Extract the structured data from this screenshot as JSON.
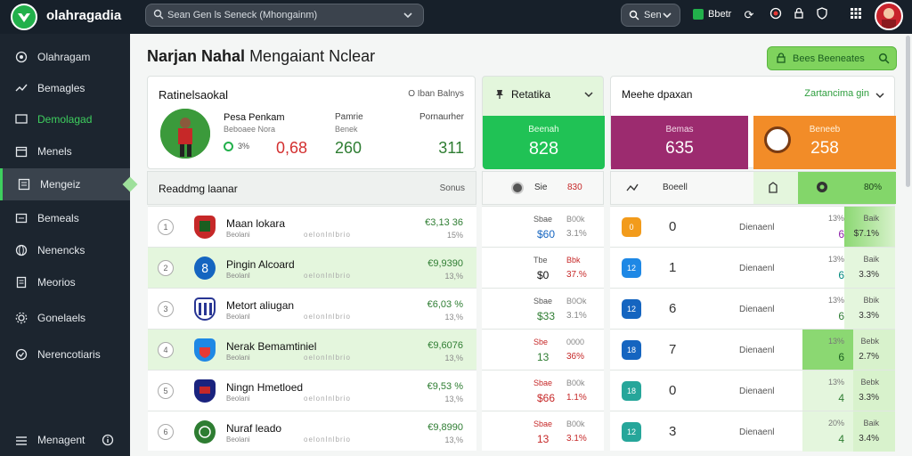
{
  "app": {
    "title": "olahragadia"
  },
  "topbar": {
    "search_placeholder": "Sean Gen ls Seneck (Mhongainm)",
    "btn_search_label": "Sen",
    "btn_live_label": "Bbetr"
  },
  "sidebar": {
    "items": [
      {
        "label": "Olahragam",
        "icon": "target-icon"
      },
      {
        "label": "Bemagles",
        "icon": "trending-icon"
      },
      {
        "label": "Demolagad",
        "icon": "screen-icon"
      },
      {
        "label": "Menels",
        "icon": "calendar-icon"
      },
      {
        "label": "Mengeiz",
        "icon": "list-icon"
      },
      {
        "label": "Bemeals",
        "icon": "window-icon"
      },
      {
        "label": "Nenencks",
        "icon": "globe-icon"
      },
      {
        "label": "Meorios",
        "icon": "document-icon"
      },
      {
        "label": "Gonelaels",
        "icon": "settings-icon"
      },
      {
        "label": "Nerencotiaris",
        "icon": "shield-icon"
      }
    ],
    "footer_label": "Menagent"
  },
  "page": {
    "title_bold": "Narjan Nahal",
    "title_rest": "Mengaiant Nclear",
    "cta_label": "Bees Beeneates"
  },
  "profile": {
    "title": "Ratinelsaokal",
    "link": "O Iban Balnys",
    "player_name": "Pesa Penkam",
    "player_sub": "Beboaee Nora",
    "player_small": "3%",
    "col2_label": "Pamrie",
    "col2_sub": "Benek",
    "col3_label": "Pornaurher",
    "val1": "0,68",
    "val2": "260",
    "val3": "311"
  },
  "ranking": {
    "title": "Readdmg laanar",
    "link": "Sonus",
    "rows": [
      {
        "rank": "1",
        "team": "Maan lokara",
        "sub": "Beolani",
        "dots": "oelonlnlbrio",
        "val": "€3,13 36",
        "pct": "15%"
      },
      {
        "rank": "2",
        "team": "Pingin Alcoard",
        "sub": "Beolanl",
        "dots": "oelonlnlbrio",
        "val": "€9,9390",
        "pct": "13,%"
      },
      {
        "rank": "3",
        "team": "Metort aliugan",
        "sub": "Beolanl",
        "dots": "oelonlnlbrio",
        "val": "€6,03 %",
        "pct": "13,%"
      },
      {
        "rank": "4",
        "team": "Nerak Bemamtiniel",
        "sub": "Beolani",
        "dots": "oelonlnlbrio",
        "val": "€9,6076",
        "pct": "13,%"
      },
      {
        "rank": "5",
        "team": "Ningn Hmetloed",
        "sub": "Beolani",
        "dots": "oelonlnlbrio",
        "val": "€9,53 %",
        "pct": "13,%"
      },
      {
        "rank": "6",
        "team": "Nuraf leado",
        "sub": "Beolani",
        "dots": "oelonlnlbrio",
        "val": "€9,8990",
        "pct": "13,%"
      }
    ]
  },
  "mid": {
    "title": "Retatika",
    "stat_label": "Beenah",
    "stat_value": "828",
    "sub_label": "Sie",
    "sub_value": "830",
    "rows": [
      {
        "a": "Sbae",
        "b": "B00k",
        "c": "$60",
        "d": "3.1%"
      },
      {
        "a": "Tbe",
        "b": "Bbk",
        "c": "$0",
        "d": "37.%"
      },
      {
        "a": "Sbae",
        "b": "B0Ok",
        "c": "$33",
        "d": "3.1%"
      },
      {
        "a": "Sbe",
        "b": "0000",
        "c": "13",
        "d": "36%"
      },
      {
        "a": "Sbae",
        "b": "B00k",
        "c": "$66",
        "d": "1.1%"
      },
      {
        "a": "Sbae",
        "b": "B00k",
        "c": "13",
        "d": "3.1%"
      }
    ]
  },
  "right": {
    "title": "Meehe dpaxan",
    "dropdown": "Zartancima gin",
    "stat1_label": "Bemas",
    "stat1_value": "635",
    "stat2_label": "Beneeb",
    "stat2_value": "258",
    "sub_label": "Boeell",
    "sub_value": "80%",
    "rows": [
      {
        "sq": "0",
        "n": "0",
        "lab": "Dienaenl",
        "t1": "13%",
        "t2": "Baik",
        "b1": "6",
        "b2": "$7.1%"
      },
      {
        "sq": "12",
        "n": "1",
        "lab": "Dienaenl",
        "t1": "13%",
        "t2": "Baik",
        "b1": "6",
        "b2": "3.3%"
      },
      {
        "sq": "12",
        "n": "6",
        "lab": "Dienaenl",
        "t1": "13%",
        "t2": "Bbik",
        "b1": "6",
        "b2": "3.3%"
      },
      {
        "sq": "18",
        "n": "7",
        "lab": "Dienaenl",
        "t1": "13%",
        "t2": "Bebk",
        "b1": "6",
        "b2": "2.7%"
      },
      {
        "sq": "18",
        "n": "0",
        "lab": "Dienaenl",
        "t1": "13%",
        "t2": "Bebk",
        "b1": "4",
        "b2": "3.3%"
      },
      {
        "sq": "12",
        "n": "3",
        "lab": "Dienaenl",
        "t1": "20%",
        "t2": "Baik",
        "b1": "4",
        "b2": "3.4%"
      }
    ]
  },
  "colors": {
    "brand_green": "#22b04b",
    "mid_green": "#20c255",
    "purple": "#9c2b6f",
    "orange": "#f28c28"
  }
}
